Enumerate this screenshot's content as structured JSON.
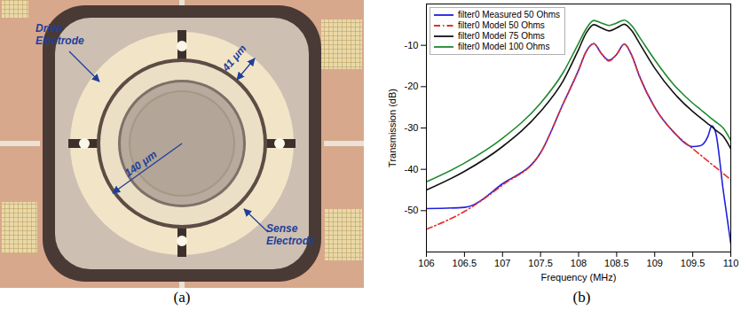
{
  "chart_data": {
    "type": "line",
    "panel_label": "(b)",
    "x_label": "Frequency (MHz)",
    "y_label": "Transmission (dB)",
    "xlim": [
      106,
      110
    ],
    "xticks": [
      106,
      106.5,
      107,
      107.5,
      108,
      108.5,
      109,
      109.5,
      110
    ],
    "ylim": [
      -60,
      0
    ],
    "yticks": [
      -50,
      -40,
      -30,
      -20,
      -10
    ],
    "grid": false,
    "legend": "top-left",
    "x": [
      106,
      106.5,
      107,
      107.5,
      107.8,
      108,
      108.1,
      108.2,
      108.3,
      108.4,
      108.5,
      108.6,
      108.7,
      108.8,
      109,
      109.25,
      109.5,
      109.6,
      109.7,
      109.75,
      109.8,
      109.9,
      110
    ],
    "series": [
      {
        "name": "filter0 Measured 50 Ohms",
        "color": "#1f1fe0",
        "line_style": "solid",
        "values": [
          -49.5,
          -49.2,
          -43.5,
          -36,
          -24,
          -16,
          -11.5,
          -9.6,
          -12,
          -13.6,
          -12.2,
          -9.7,
          -12.5,
          -17.5,
          -25,
          -31,
          -34.5,
          -34.3,
          -32,
          -29.5,
          -31,
          -45,
          -58
        ]
      },
      {
        "name": "filter0 Model 50 Ohms",
        "color": "#e03030",
        "line_style": "dashdot",
        "values": [
          -54.5,
          -50.2,
          -43.8,
          -36,
          -24,
          -16,
          -11.5,
          -9.6,
          -12,
          -13.8,
          -12.2,
          -9.7,
          -12.5,
          -17.5,
          -25,
          -31,
          -35,
          -36.5,
          -38,
          -38.8,
          -39.5,
          -41,
          -42.5
        ]
      },
      {
        "name": "filter0 Model 75 Ohms",
        "color": "#111111",
        "line_style": "solid",
        "values": [
          -45,
          -40.5,
          -34.5,
          -26,
          -18.5,
          -11,
          -7,
          -5,
          -5.8,
          -6.5,
          -5.8,
          -4.9,
          -6.5,
          -9.5,
          -15.5,
          -21.5,
          -26,
          -27.5,
          -29,
          -29.7,
          -30.5,
          -32,
          -35
        ]
      },
      {
        "name": "filter0 Model 100 Ohms",
        "color": "#1e8a2e",
        "line_style": "solid",
        "values": [
          -43,
          -38.5,
          -32.5,
          -24,
          -16.5,
          -9.5,
          -6,
          -4,
          -4.6,
          -5.2,
          -4.6,
          -3.9,
          -5.3,
          -8,
          -13.5,
          -19.5,
          -24,
          -25.5,
          -27,
          -27.8,
          -28.5,
          -30,
          -33
        ]
      }
    ]
  },
  "photo": {
    "panel_label": "(a)",
    "labels": {
      "drive": "Drive Electrode",
      "sense": "Sense Electrode",
      "diameter": "140 μm",
      "width": "41 μm"
    }
  }
}
